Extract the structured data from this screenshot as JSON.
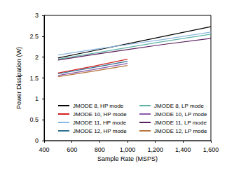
{
  "chart_data": {
    "type": "line",
    "x_label": "Sample Rate (MSPS)",
    "y_label": "Power Dissipation (W)",
    "xlim": [
      400,
      1600
    ],
    "xticks": [
      400,
      600,
      800,
      1000,
      1200,
      1400,
      1600
    ],
    "ylim": [
      0,
      3
    ],
    "yticks": [
      0,
      0.5,
      1,
      1.5,
      2,
      2.5,
      3
    ],
    "grid": false,
    "legend": "lower right",
    "series": [
      {
        "name": "JMODE 8, HP mode",
        "color": "#000000",
        "x": [
          500,
          750,
          1000,
          1250,
          1600
        ],
        "values": [
          1.98,
          2.15,
          2.32,
          2.49,
          2.73
        ]
      },
      {
        "name": "JMODE 8, LP mode",
        "color": "#5fb3a6",
        "x": [
          500,
          750,
          1000,
          1250,
          1600
        ],
        "values": [
          1.95,
          2.09,
          2.23,
          2.37,
          2.55
        ]
      },
      {
        "name": "JMODE 10, HP mode",
        "color": "#d62020",
        "x": [
          500,
          750,
          1000
        ],
        "values": [
          1.62,
          1.78,
          1.95
        ]
      },
      {
        "name": "JMODE 10, LP mode",
        "color": "#8a5aa8",
        "x": [
          500,
          750,
          1000
        ],
        "values": [
          1.56,
          1.7,
          1.85
        ]
      },
      {
        "name": "JMODE 11, HP mode",
        "color": "#8cb8e0",
        "x": [
          500,
          750,
          1000,
          1250,
          1600
        ],
        "values": [
          2.05,
          2.18,
          2.3,
          2.42,
          2.6
        ]
      },
      {
        "name": "JMODE 11, LP mode",
        "color": "#5a1f5e",
        "x": [
          500,
          750,
          1000,
          1250,
          1600
        ],
        "values": [
          1.93,
          2.06,
          2.18,
          2.3,
          2.45
        ]
      },
      {
        "name": "JMODE 12, HP mode",
        "color": "#2e6e8e",
        "x": [
          500,
          750,
          1000
        ],
        "values": [
          1.6,
          1.75,
          1.9
        ]
      },
      {
        "name": "JMODE 12, LP mode",
        "color": "#b8743c",
        "x": [
          500,
          750,
          1000
        ],
        "values": [
          1.53,
          1.66,
          1.8
        ]
      }
    ]
  }
}
